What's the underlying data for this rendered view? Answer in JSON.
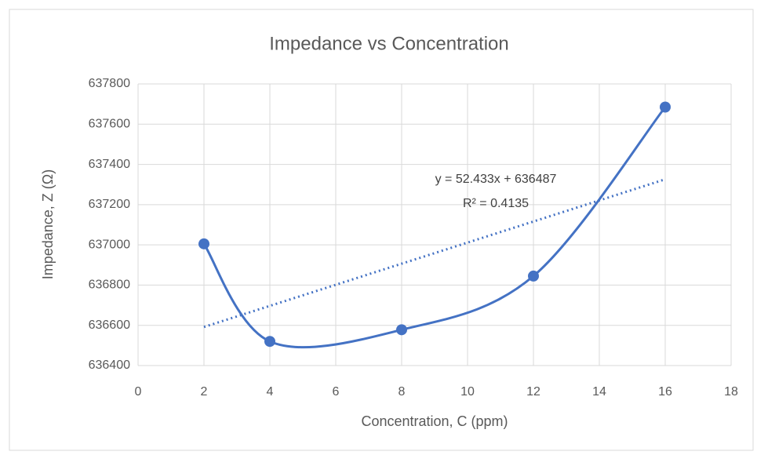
{
  "chart_data": {
    "type": "scatter",
    "title": "Impedance vs Concentration",
    "x_label": "Concentration, C (ppm)",
    "y_label": "Impedance, Z (Ω)",
    "series": [
      {
        "name": "Impedance",
        "color": "#4472c4",
        "x": [
          2,
          4,
          8,
          12,
          16
        ],
        "values": [
          637005,
          636520,
          636578,
          636845,
          637685
        ]
      }
    ],
    "trendline": {
      "slope": 52.433,
      "intercept": 636487,
      "equation": "y = 52.433x + 636487",
      "r_squared": "R² = 0.4135"
    },
    "xlim": [
      0,
      18
    ],
    "xticks": [
      0,
      2,
      4,
      6,
      8,
      10,
      12,
      14,
      16,
      18
    ],
    "ylim": [
      636400,
      637800
    ],
    "yticks": [
      636400,
      636600,
      636800,
      637000,
      637200,
      637400,
      637600,
      637800
    ],
    "grid": true,
    "smooth": true
  }
}
